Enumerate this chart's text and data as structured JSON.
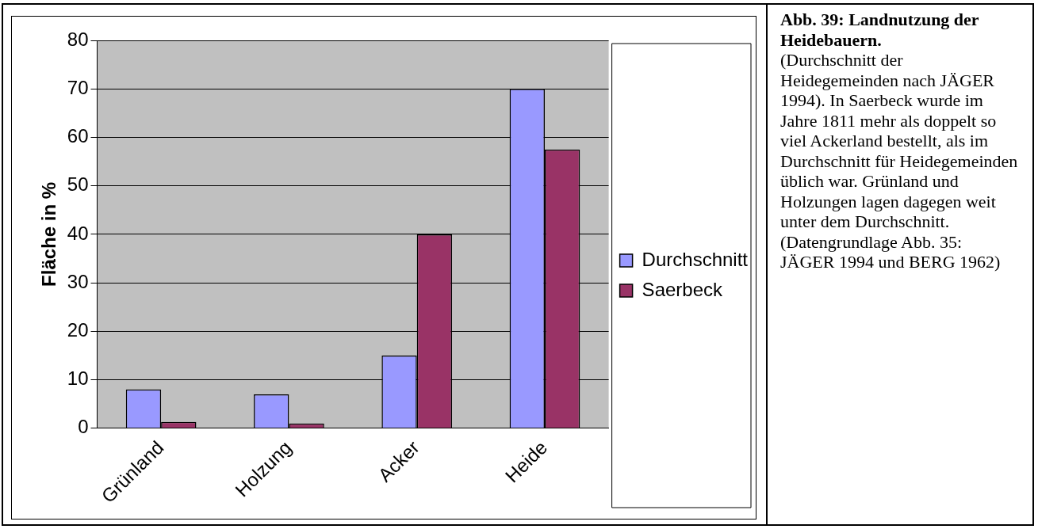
{
  "chart_data": {
    "type": "bar",
    "title": "Abb. 39: Landnutzung der Heidebauern.",
    "annotations": [
      "(Durchschnitt der Heidegemeinden nach JÄGER 1994). In Saerbeck wurde im Jahre 1811 mehr als doppelt so viel Ackerland bestellt, als im Durchschnitt für Heidegemeinden üblich war. Grünland und Holzungen lagen dagegen weit unter dem Durchschnitt. (Datengrundlage Abb. 35: JÄGER 1994 und BERG 1962)"
    ],
    "ylabel": "Fläche in %",
    "categories": [
      "Grünland",
      "Holzung",
      "Acker",
      "Heide"
    ],
    "series": [
      {
        "name": "Durchschnitt",
        "color": "#9999ff",
        "values": [
          8,
          7,
          15,
          70
        ]
      },
      {
        "name": "Saerbeck",
        "color": "#993366",
        "values": [
          1.3,
          1,
          40,
          57.5
        ]
      }
    ],
    "ylim": [
      0,
      80
    ],
    "yticks": [
      0,
      10,
      20,
      30,
      40,
      50,
      60,
      70,
      80
    ],
    "grid": "y",
    "legend": "right"
  }
}
